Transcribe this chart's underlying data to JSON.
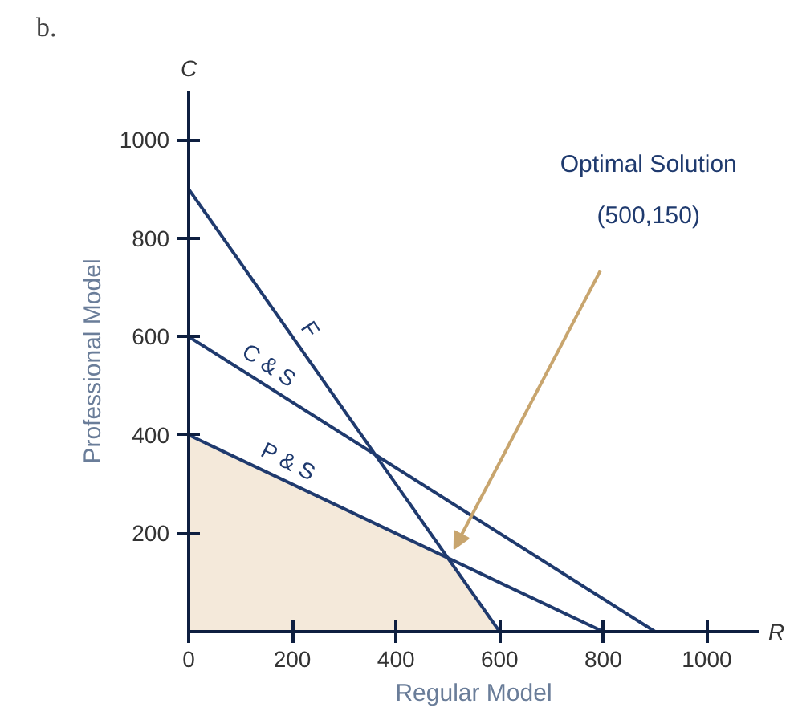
{
  "chart_data": {
    "type": "line",
    "title": "b.",
    "xlabel": "Regular Model",
    "ylabel": "Professional Model",
    "xlim": [
      0,
      1100
    ],
    "ylim": [
      0,
      1100
    ],
    "xticks": [
      0,
      200,
      400,
      600,
      800,
      1000
    ],
    "yticks": [
      200,
      400,
      600,
      800,
      1000
    ],
    "grid": false,
    "marker": "none",
    "line_style": "solid",
    "series": [
      {
        "type": "area",
        "color": "#f4e9da",
        "x": [
          0,
          0,
          500,
          600
        ],
        "values": [
          0,
          400,
          150,
          0
        ]
      },
      {
        "name": "F",
        "color": "#1f3a6e",
        "x": [
          0,
          600
        ],
        "values": [
          900,
          0
        ]
      },
      {
        "name": "C & S",
        "color": "#1f3a6e",
        "x": [
          0,
          900
        ],
        "values": [
          600,
          0
        ]
      },
      {
        "name": "P & S",
        "color": "#1f3a6e",
        "x": [
          0,
          800
        ],
        "values": [
          400,
          0
        ]
      }
    ],
    "annotations": [
      "Optimal Solution\n(500,150)",
      "C",
      "R"
    ]
  }
}
